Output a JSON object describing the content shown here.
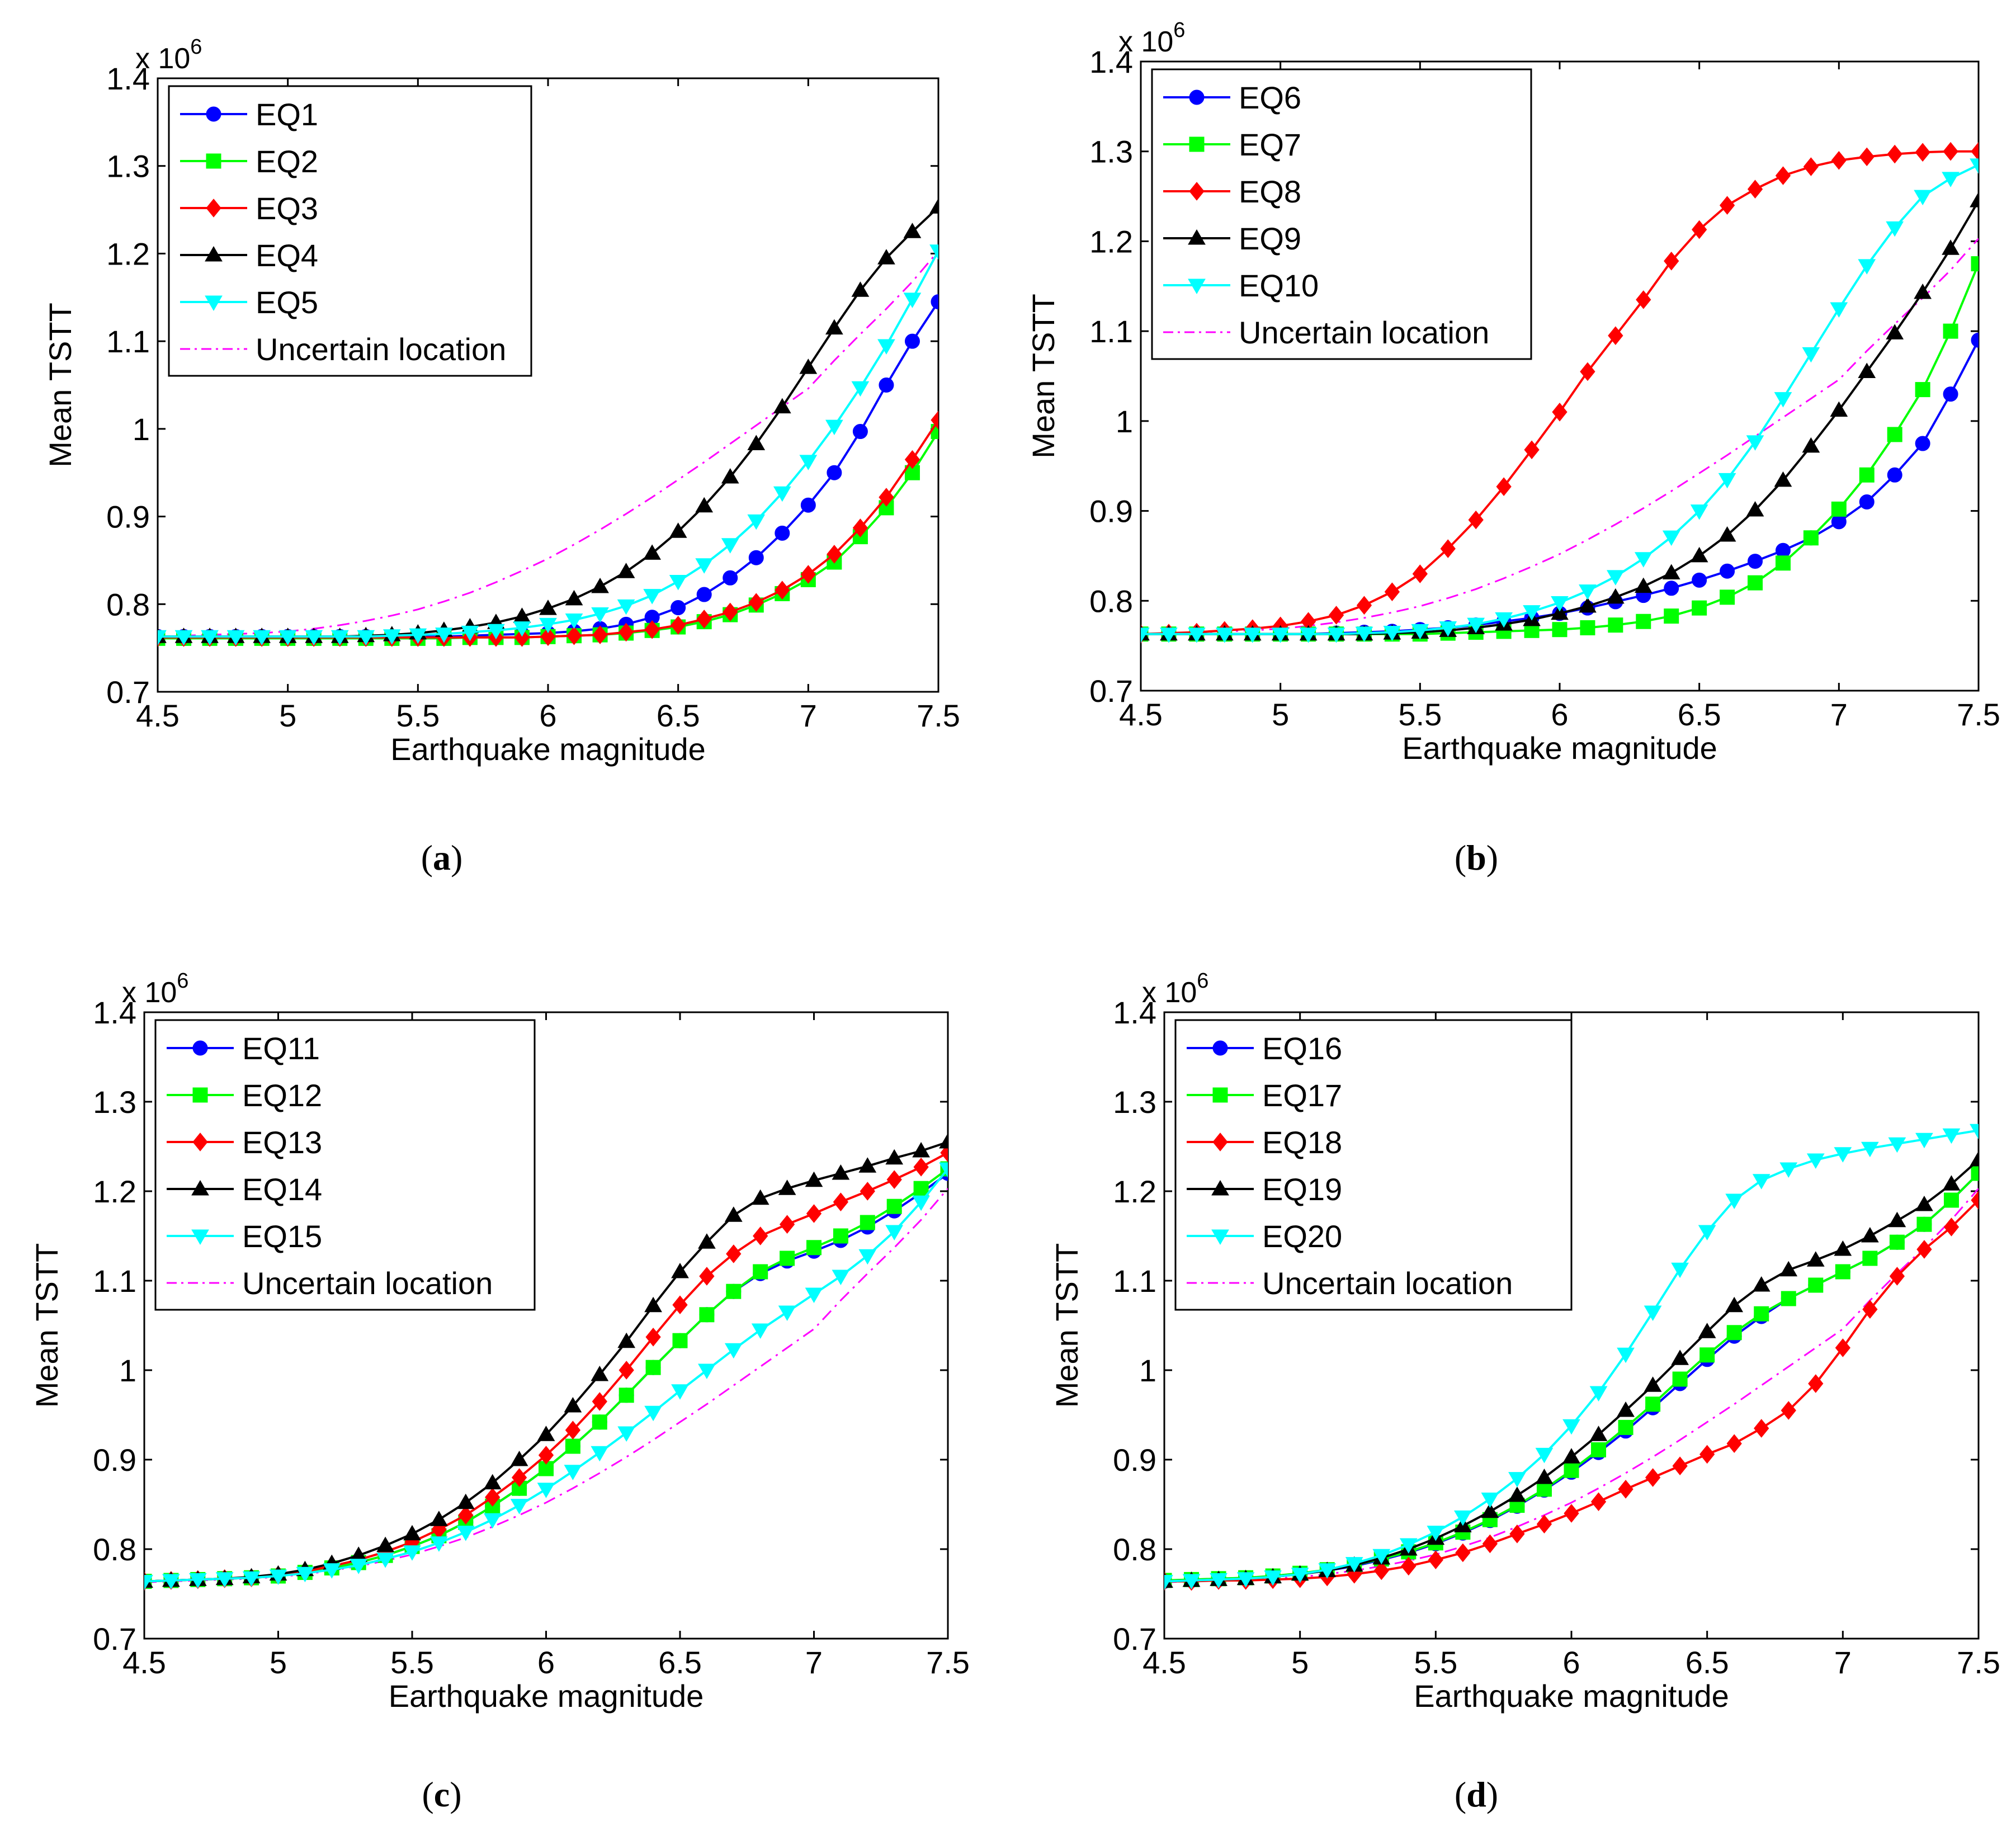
{
  "figure": {
    "x_values": [
      4.5,
      4.6,
      4.7,
      4.8,
      4.9,
      5.0,
      5.1,
      5.2,
      5.3,
      5.4,
      5.5,
      5.6,
      5.7,
      5.8,
      5.9,
      6.0,
      6.1,
      6.2,
      6.3,
      6.4,
      6.5,
      6.6,
      6.7,
      6.8,
      6.9,
      7.0,
      7.1,
      7.2,
      7.3,
      7.4,
      7.5
    ],
    "series_styles": [
      {
        "color": "#0000ff",
        "marker": "circle"
      },
      {
        "color": "#00ff00",
        "marker": "square"
      },
      {
        "color": "#ff0000",
        "marker": "diamond"
      },
      {
        "color": "#000000",
        "marker": "triangle-up"
      },
      {
        "color": "#00ffff",
        "marker": "triangle-down"
      }
    ],
    "uncertain_style": {
      "color": "#ff00ff",
      "line": "dash-dot"
    }
  },
  "chart_data": [
    {
      "type": "line",
      "caption_pre": "(",
      "caption_letter": "a",
      "caption_post": ")",
      "xlabel": "Earthquake magnitude",
      "ylabel": "Mean TSTT",
      "exponent_base": "x 10",
      "exponent_power": "6",
      "xlim": [
        4.5,
        7.5
      ],
      "ylim": [
        0.7,
        1.4
      ],
      "xticks": [
        "4.5",
        "5",
        "5.5",
        "6",
        "6.5",
        "7",
        "7.5"
      ],
      "yticks": [
        "0.7",
        "0.8",
        "0.9",
        "1",
        "1.1",
        "1.2",
        "1.3",
        "1.4"
      ],
      "series": [
        {
          "name": "EQ1",
          "values": [
            0.763,
            0.763,
            0.763,
            0.763,
            0.763,
            0.763,
            0.763,
            0.763,
            0.763,
            0.763,
            0.763,
            0.763,
            0.764,
            0.765,
            0.766,
            0.767,
            0.769,
            0.772,
            0.777,
            0.785,
            0.796,
            0.811,
            0.83,
            0.853,
            0.881,
            0.913,
            0.95,
            0.997,
            1.05,
            1.1,
            1.145
          ]
        },
        {
          "name": "EQ2",
          "values": [
            0.761,
            0.761,
            0.761,
            0.761,
            0.761,
            0.761,
            0.761,
            0.761,
            0.761,
            0.761,
            0.761,
            0.761,
            0.762,
            0.762,
            0.762,
            0.763,
            0.764,
            0.765,
            0.767,
            0.77,
            0.774,
            0.78,
            0.788,
            0.799,
            0.812,
            0.828,
            0.848,
            0.877,
            0.91,
            0.95,
            0.997
          ]
        },
        {
          "name": "EQ3",
          "values": [
            0.762,
            0.762,
            0.762,
            0.762,
            0.762,
            0.762,
            0.762,
            0.762,
            0.762,
            0.762,
            0.762,
            0.762,
            0.762,
            0.762,
            0.762,
            0.763,
            0.764,
            0.765,
            0.768,
            0.771,
            0.776,
            0.783,
            0.791,
            0.802,
            0.816,
            0.834,
            0.857,
            0.887,
            0.922,
            0.965,
            1.01
          ]
        },
        {
          "name": "EQ4",
          "values": [
            0.763,
            0.763,
            0.763,
            0.763,
            0.763,
            0.763,
            0.763,
            0.763,
            0.764,
            0.765,
            0.767,
            0.77,
            0.774,
            0.779,
            0.786,
            0.795,
            0.806,
            0.82,
            0.837,
            0.858,
            0.883,
            0.912,
            0.945,
            0.983,
            1.025,
            1.07,
            1.115,
            1.158,
            1.195,
            1.225,
            1.253
          ]
        },
        {
          "name": "EQ5",
          "values": [
            0.763,
            0.763,
            0.763,
            0.763,
            0.763,
            0.763,
            0.763,
            0.763,
            0.763,
            0.764,
            0.765,
            0.766,
            0.768,
            0.77,
            0.773,
            0.777,
            0.782,
            0.789,
            0.798,
            0.81,
            0.826,
            0.845,
            0.868,
            0.895,
            0.927,
            0.963,
            1.003,
            1.047,
            1.095,
            1.148,
            1.203
          ]
        }
      ],
      "uncertain": {
        "name": "Uncertain location",
        "values": [
          0.763,
          0.764,
          0.765,
          0.766,
          0.767,
          0.769,
          0.772,
          0.776,
          0.781,
          0.787,
          0.794,
          0.803,
          0.813,
          0.825,
          0.838,
          0.852,
          0.868,
          0.885,
          0.903,
          0.922,
          0.942,
          0.962,
          0.983,
          1.004,
          1.025,
          1.046,
          1.078,
          1.108,
          1.137,
          1.168,
          1.203
        ]
      }
    },
    {
      "type": "line",
      "caption_pre": "(",
      "caption_letter": "b",
      "caption_post": ")",
      "xlabel": "Earthquake magnitude",
      "ylabel": "Mean TSTT",
      "exponent_base": "x 10",
      "exponent_power": "6",
      "xlim": [
        4.5,
        7.5
      ],
      "ylim": [
        0.7,
        1.4
      ],
      "xticks": [
        "4.5",
        "5",
        "5.5",
        "6",
        "6.5",
        "7",
        "7.5"
      ],
      "yticks": [
        "0.7",
        "0.8",
        "0.9",
        "1",
        "1.1",
        "1.2",
        "1.3",
        "1.4"
      ],
      "series": [
        {
          "name": "EQ6",
          "values": [
            0.763,
            0.763,
            0.763,
            0.763,
            0.763,
            0.763,
            0.763,
            0.764,
            0.765,
            0.766,
            0.768,
            0.77,
            0.773,
            0.777,
            0.781,
            0.786,
            0.792,
            0.799,
            0.806,
            0.814,
            0.823,
            0.833,
            0.844,
            0.856,
            0.87,
            0.888,
            0.91,
            0.94,
            0.975,
            1.03,
            1.09
          ]
        },
        {
          "name": "EQ7",
          "values": [
            0.763,
            0.763,
            0.763,
            0.763,
            0.763,
            0.763,
            0.763,
            0.763,
            0.763,
            0.763,
            0.763,
            0.764,
            0.765,
            0.766,
            0.767,
            0.768,
            0.77,
            0.773,
            0.777,
            0.783,
            0.792,
            0.804,
            0.82,
            0.842,
            0.87,
            0.902,
            0.94,
            0.985,
            1.035,
            1.1,
            1.175
          ]
        },
        {
          "name": "EQ8",
          "values": [
            0.763,
            0.764,
            0.765,
            0.767,
            0.769,
            0.772,
            0.777,
            0.784,
            0.795,
            0.81,
            0.83,
            0.858,
            0.89,
            0.927,
            0.968,
            1.01,
            1.055,
            1.095,
            1.135,
            1.178,
            1.213,
            1.24,
            1.258,
            1.273,
            1.283,
            1.29,
            1.294,
            1.297,
            1.299,
            1.3,
            1.3
          ]
        },
        {
          "name": "EQ9",
          "values": [
            0.763,
            0.763,
            0.763,
            0.763,
            0.763,
            0.763,
            0.763,
            0.763,
            0.763,
            0.764,
            0.765,
            0.767,
            0.77,
            0.774,
            0.779,
            0.786,
            0.794,
            0.804,
            0.816,
            0.831,
            0.85,
            0.873,
            0.901,
            0.934,
            0.972,
            1.012,
            1.055,
            1.098,
            1.143,
            1.192,
            1.245
          ]
        },
        {
          "name": "EQ10",
          "values": [
            0.763,
            0.763,
            0.763,
            0.763,
            0.763,
            0.763,
            0.763,
            0.763,
            0.764,
            0.765,
            0.767,
            0.77,
            0.774,
            0.78,
            0.788,
            0.798,
            0.811,
            0.827,
            0.847,
            0.871,
            0.9,
            0.935,
            0.977,
            1.025,
            1.075,
            1.125,
            1.173,
            1.215,
            1.25,
            1.27,
            1.285
          ]
        }
      ],
      "uncertain": {
        "name": "Uncertain location",
        "values": [
          0.763,
          0.764,
          0.765,
          0.766,
          0.767,
          0.769,
          0.772,
          0.776,
          0.781,
          0.787,
          0.794,
          0.803,
          0.813,
          0.825,
          0.838,
          0.852,
          0.868,
          0.885,
          0.903,
          0.922,
          0.942,
          0.962,
          0.983,
          1.004,
          1.025,
          1.046,
          1.078,
          1.108,
          1.137,
          1.168,
          1.203
        ]
      }
    },
    {
      "type": "line",
      "caption_pre": "(",
      "caption_letter": "c",
      "caption_post": ")",
      "xlabel": "Earthquake magnitude",
      "ylabel": "Mean TSTT",
      "exponent_base": "x 10",
      "exponent_power": "6",
      "xlim": [
        4.5,
        7.5
      ],
      "ylim": [
        0.7,
        1.4
      ],
      "xticks": [
        "4.5",
        "5",
        "5.5",
        "6",
        "6.5",
        "7",
        "7.5"
      ],
      "yticks": [
        "0.7",
        "0.8",
        "0.9",
        "1",
        "1.1",
        "1.2",
        "1.3",
        "1.4"
      ],
      "series": [
        {
          "name": "EQ11",
          "values": [
            0.764,
            0.765,
            0.766,
            0.767,
            0.768,
            0.77,
            0.774,
            0.779,
            0.785,
            0.793,
            0.803,
            0.815,
            0.83,
            0.848,
            0.868,
            0.89,
            0.915,
            0.942,
            0.972,
            1.003,
            1.033,
            1.062,
            1.088,
            1.108,
            1.122,
            1.133,
            1.145,
            1.16,
            1.178,
            1.198,
            1.22
          ]
        },
        {
          "name": "EQ12",
          "values": [
            0.764,
            0.765,
            0.766,
            0.767,
            0.768,
            0.77,
            0.774,
            0.779,
            0.785,
            0.793,
            0.803,
            0.815,
            0.83,
            0.848,
            0.868,
            0.89,
            0.915,
            0.942,
            0.972,
            1.003,
            1.033,
            1.062,
            1.088,
            1.11,
            1.125,
            1.137,
            1.15,
            1.165,
            1.183,
            1.203,
            1.225
          ]
        },
        {
          "name": "EQ13",
          "values": [
            0.764,
            0.765,
            0.766,
            0.767,
            0.768,
            0.771,
            0.775,
            0.781,
            0.788,
            0.797,
            0.808,
            0.822,
            0.838,
            0.858,
            0.88,
            0.905,
            0.933,
            0.965,
            1.0,
            1.037,
            1.073,
            1.105,
            1.13,
            1.15,
            1.163,
            1.175,
            1.188,
            1.2,
            1.213,
            1.227,
            1.243
          ]
        },
        {
          "name": "EQ14",
          "values": [
            0.764,
            0.765,
            0.766,
            0.767,
            0.769,
            0.772,
            0.777,
            0.784,
            0.793,
            0.804,
            0.817,
            0.833,
            0.852,
            0.874,
            0.9,
            0.928,
            0.96,
            0.995,
            1.032,
            1.072,
            1.11,
            1.143,
            1.173,
            1.192,
            1.203,
            1.212,
            1.22,
            1.228,
            1.237,
            1.245,
            1.255
          ]
        },
        {
          "name": "EQ15",
          "values": [
            0.764,
            0.765,
            0.766,
            0.767,
            0.768,
            0.77,
            0.773,
            0.777,
            0.782,
            0.789,
            0.797,
            0.807,
            0.819,
            0.833,
            0.849,
            0.867,
            0.887,
            0.908,
            0.93,
            0.953,
            0.977,
            1.0,
            1.023,
            1.045,
            1.065,
            1.085,
            1.105,
            1.128,
            1.155,
            1.188,
            1.225
          ]
        }
      ],
      "uncertain": {
        "name": "Uncertain location",
        "values": [
          0.763,
          0.764,
          0.765,
          0.766,
          0.767,
          0.769,
          0.772,
          0.776,
          0.781,
          0.787,
          0.794,
          0.803,
          0.813,
          0.825,
          0.838,
          0.852,
          0.868,
          0.885,
          0.903,
          0.922,
          0.942,
          0.962,
          0.983,
          1.004,
          1.025,
          1.046,
          1.078,
          1.108,
          1.137,
          1.168,
          1.203
        ]
      }
    },
    {
      "type": "line",
      "caption_pre": "(",
      "caption_letter": "d",
      "caption_post": ")",
      "xlabel": "Earthquake magnitude",
      "ylabel": "Mean TSTT",
      "exponent_base": "x 10",
      "exponent_power": "6",
      "xlim": [
        4.5,
        7.5
      ],
      "ylim": [
        0.7,
        1.4
      ],
      "xticks": [
        "4.5",
        "5",
        "5.5",
        "6",
        "6.5",
        "7",
        "7.5"
      ],
      "yticks": [
        "0.7",
        "0.8",
        "0.9",
        "1",
        "1.1",
        "1.2",
        "1.3",
        "1.4"
      ],
      "series": [
        {
          "name": "EQ16",
          "values": [
            0.764,
            0.765,
            0.766,
            0.767,
            0.769,
            0.772,
            0.776,
            0.781,
            0.788,
            0.796,
            0.806,
            0.818,
            0.832,
            0.848,
            0.866,
            0.886,
            0.908,
            0.932,
            0.958,
            0.985,
            1.012,
            1.038,
            1.06,
            1.08,
            1.095,
            1.11,
            1.125,
            1.143,
            1.163,
            1.19,
            1.22
          ]
        },
        {
          "name": "EQ17",
          "values": [
            0.765,
            0.766,
            0.767,
            0.768,
            0.77,
            0.773,
            0.777,
            0.782,
            0.789,
            0.797,
            0.807,
            0.819,
            0.833,
            0.849,
            0.867,
            0.888,
            0.911,
            0.936,
            0.962,
            0.99,
            1.017,
            1.042,
            1.063,
            1.08,
            1.095,
            1.11,
            1.125,
            1.143,
            1.163,
            1.19,
            1.22
          ]
        },
        {
          "name": "EQ18",
          "values": [
            0.764,
            0.764,
            0.765,
            0.765,
            0.766,
            0.767,
            0.769,
            0.772,
            0.776,
            0.781,
            0.788,
            0.796,
            0.806,
            0.817,
            0.828,
            0.84,
            0.853,
            0.867,
            0.88,
            0.893,
            0.906,
            0.918,
            0.935,
            0.955,
            0.985,
            1.025,
            1.068,
            1.105,
            1.135,
            1.16,
            1.19
          ]
        },
        {
          "name": "EQ19",
          "values": [
            0.764,
            0.765,
            0.766,
            0.767,
            0.769,
            0.772,
            0.776,
            0.782,
            0.79,
            0.8,
            0.812,
            0.826,
            0.842,
            0.86,
            0.88,
            0.903,
            0.928,
            0.955,
            0.983,
            1.013,
            1.043,
            1.072,
            1.095,
            1.112,
            1.123,
            1.135,
            1.15,
            1.167,
            1.185,
            1.208,
            1.235
          ]
        },
        {
          "name": "EQ20",
          "values": [
            0.764,
            0.765,
            0.766,
            0.767,
            0.769,
            0.772,
            0.777,
            0.784,
            0.793,
            0.805,
            0.819,
            0.836,
            0.856,
            0.879,
            0.906,
            0.938,
            0.975,
            1.018,
            1.065,
            1.113,
            1.155,
            1.19,
            1.212,
            1.225,
            1.235,
            1.242,
            1.248,
            1.253,
            1.258,
            1.263,
            1.268
          ]
        }
      ],
      "uncertain": {
        "name": "Uncertain location",
        "values": [
          0.763,
          0.764,
          0.765,
          0.766,
          0.767,
          0.769,
          0.772,
          0.776,
          0.781,
          0.787,
          0.794,
          0.803,
          0.813,
          0.825,
          0.838,
          0.852,
          0.868,
          0.885,
          0.903,
          0.922,
          0.942,
          0.962,
          0.983,
          1.004,
          1.025,
          1.046,
          1.078,
          1.108,
          1.137,
          1.168,
          1.203
        ]
      }
    }
  ]
}
